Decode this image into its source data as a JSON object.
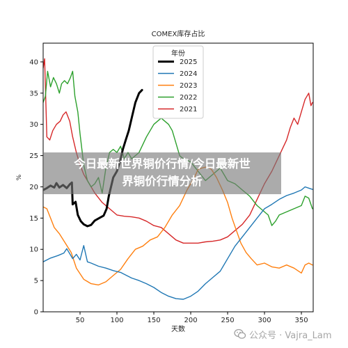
{
  "chart_data": {
    "type": "line",
    "title": "COMEX库存占比",
    "xlabel": "天数",
    "ylabel": "%",
    "xlim": [
      0,
      366
    ],
    "ylim": [
      0,
      43
    ],
    "xticks": [
      50,
      100,
      150,
      200,
      250,
      300,
      350
    ],
    "yticks": [
      0,
      5,
      10,
      15,
      20,
      25,
      30,
      35,
      40
    ],
    "grid": false,
    "legend_title": "年份",
    "legend_position": "top-center",
    "series": [
      {
        "name": "2025",
        "color": "#000000",
        "width": 3,
        "points": [
          [
            0,
            19.5
          ],
          [
            5,
            19.8
          ],
          [
            10,
            20.2
          ],
          [
            15,
            19.9
          ],
          [
            18,
            20.6
          ],
          [
            22,
            19.9
          ],
          [
            27,
            20.3
          ],
          [
            32,
            19.8
          ],
          [
            36,
            20.4
          ],
          [
            39,
            20.7
          ],
          [
            40,
            17.2
          ],
          [
            44,
            17.6
          ],
          [
            47,
            15.5
          ],
          [
            51,
            14.5
          ],
          [
            55,
            14.0
          ],
          [
            60,
            13.7
          ],
          [
            65,
            13.9
          ],
          [
            70,
            14.6
          ],
          [
            76,
            15.0
          ],
          [
            82,
            15.4
          ],
          [
            86,
            16.5
          ],
          [
            89,
            18.5
          ],
          [
            92,
            20.0
          ],
          [
            95,
            21.5
          ],
          [
            100,
            22.5
          ],
          [
            104,
            24.0
          ],
          [
            108,
            26.0
          ],
          [
            112,
            27.5
          ],
          [
            116,
            29.0
          ],
          [
            120,
            31.0
          ],
          [
            125,
            33.5
          ],
          [
            130,
            35.0
          ],
          [
            134,
            35.5
          ]
        ]
      },
      {
        "name": "2024",
        "color": "#1f77b4",
        "width": 1.4,
        "points": [
          [
            0,
            8.0
          ],
          [
            10,
            8.6
          ],
          [
            20,
            9.0
          ],
          [
            28,
            9.4
          ],
          [
            32,
            10.1
          ],
          [
            36,
            9.3
          ],
          [
            40,
            8.5
          ],
          [
            45,
            9.2
          ],
          [
            50,
            8.3
          ],
          [
            55,
            10.6
          ],
          [
            60,
            8.0
          ],
          [
            65,
            7.8
          ],
          [
            75,
            7.3
          ],
          [
            85,
            7.0
          ],
          [
            95,
            6.6
          ],
          [
            105,
            6.3
          ],
          [
            110,
            6.0
          ],
          [
            120,
            5.4
          ],
          [
            130,
            5.0
          ],
          [
            140,
            4.5
          ],
          [
            150,
            3.9
          ],
          [
            160,
            3.1
          ],
          [
            170,
            2.5
          ],
          [
            180,
            2.1
          ],
          [
            190,
            2.0
          ],
          [
            200,
            2.5
          ],
          [
            210,
            3.3
          ],
          [
            220,
            4.5
          ],
          [
            230,
            5.5
          ],
          [
            240,
            6.5
          ],
          [
            250,
            8.5
          ],
          [
            260,
            10.5
          ],
          [
            270,
            12.0
          ],
          [
            280,
            13.5
          ],
          [
            290,
            15.0
          ],
          [
            300,
            16.5
          ],
          [
            310,
            17.2
          ],
          [
            320,
            18.0
          ],
          [
            330,
            18.6
          ],
          [
            340,
            19.0
          ],
          [
            350,
            19.5
          ],
          [
            355,
            20.0
          ],
          [
            360,
            19.8
          ],
          [
            365,
            19.6
          ]
        ]
      },
      {
        "name": "2023",
        "color": "#ff7f0e",
        "width": 1.4,
        "points": [
          [
            0,
            16.8
          ],
          [
            5,
            16.5
          ],
          [
            10,
            15.0
          ],
          [
            15,
            13.5
          ],
          [
            22,
            12.5
          ],
          [
            30,
            11.0
          ],
          [
            38,
            9.5
          ],
          [
            45,
            7.0
          ],
          [
            55,
            5.2
          ],
          [
            65,
            4.5
          ],
          [
            75,
            4.3
          ],
          [
            85,
            4.8
          ],
          [
            95,
            5.8
          ],
          [
            105,
            6.8
          ],
          [
            115,
            8.5
          ],
          [
            125,
            10.0
          ],
          [
            135,
            10.5
          ],
          [
            145,
            11.5
          ],
          [
            155,
            12.0
          ],
          [
            165,
            13.5
          ],
          [
            175,
            15.5
          ],
          [
            185,
            17.0
          ],
          [
            195,
            19.5
          ],
          [
            205,
            21.5
          ],
          [
            210,
            22.8
          ],
          [
            215,
            23.0
          ],
          [
            222,
            23.2
          ],
          [
            228,
            22.8
          ],
          [
            235,
            21.5
          ],
          [
            243,
            19.5
          ],
          [
            250,
            17.5
          ],
          [
            256,
            15.0
          ],
          [
            262,
            13.0
          ],
          [
            268,
            11.0
          ],
          [
            275,
            9.5
          ],
          [
            282,
            8.5
          ],
          [
            290,
            7.5
          ],
          [
            300,
            7.8
          ],
          [
            310,
            7.2
          ],
          [
            320,
            7.0
          ],
          [
            330,
            7.5
          ],
          [
            340,
            7.0
          ],
          [
            350,
            6.2
          ],
          [
            355,
            7.5
          ],
          [
            360,
            7.8
          ],
          [
            365,
            7.5
          ]
        ]
      },
      {
        "name": "2022",
        "color": "#2ca02c",
        "width": 1.4,
        "points": [
          [
            0,
            33.5
          ],
          [
            3,
            34.5
          ],
          [
            6,
            38.5
          ],
          [
            10,
            36.0
          ],
          [
            14,
            37.5
          ],
          [
            18,
            36.5
          ],
          [
            22,
            35.0
          ],
          [
            25,
            36.5
          ],
          [
            29,
            37.0
          ],
          [
            33,
            36.5
          ],
          [
            37,
            37.5
          ],
          [
            40,
            38.5
          ],
          [
            43,
            34.5
          ],
          [
            47,
            32.0
          ],
          [
            50,
            28.5
          ],
          [
            55,
            23.5
          ],
          [
            60,
            21.0
          ],
          [
            65,
            20.0
          ],
          [
            70,
            20.5
          ],
          [
            75,
            21.5
          ],
          [
            80,
            19.0
          ],
          [
            85,
            23.0
          ],
          [
            90,
            25.5
          ],
          [
            95,
            26.0
          ],
          [
            100,
            25.5
          ],
          [
            105,
            26.5
          ],
          [
            110,
            24.5
          ],
          [
            115,
            25.5
          ],
          [
            120,
            24.5
          ],
          [
            130,
            25.5
          ],
          [
            140,
            28.0
          ],
          [
            150,
            30.0
          ],
          [
            160,
            31.0
          ],
          [
            170,
            30.0
          ],
          [
            175,
            29.0
          ],
          [
            180,
            27.0
          ],
          [
            185,
            25.0
          ],
          [
            190,
            24.5
          ],
          [
            200,
            24.0
          ],
          [
            210,
            22.5
          ],
          [
            220,
            21.0
          ],
          [
            230,
            22.0
          ],
          [
            240,
            23.0
          ],
          [
            250,
            21.0
          ],
          [
            260,
            20.5
          ],
          [
            270,
            19.5
          ],
          [
            280,
            18.5
          ],
          [
            290,
            17.0
          ],
          [
            300,
            16.0
          ],
          [
            305,
            15.5
          ],
          [
            310,
            13.8
          ],
          [
            315,
            14.5
          ],
          [
            320,
            15.5
          ],
          [
            330,
            16.0
          ],
          [
            340,
            16.5
          ],
          [
            350,
            17.0
          ],
          [
            355,
            18.5
          ],
          [
            360,
            18.2
          ],
          [
            365,
            16.5
          ]
        ]
      },
      {
        "name": "2021",
        "color": "#d62728",
        "width": 1.4,
        "points": [
          [
            0,
            39.0
          ],
          [
            2,
            40.5
          ],
          [
            5,
            28.0
          ],
          [
            9,
            27.5
          ],
          [
            13,
            29.0
          ],
          [
            18,
            30.0
          ],
          [
            23,
            30.5
          ],
          [
            27,
            31.5
          ],
          [
            31,
            32.0
          ],
          [
            36,
            30.5
          ],
          [
            40,
            28.0
          ],
          [
            45,
            25.5
          ],
          [
            50,
            23.5
          ],
          [
            55,
            22.0
          ],
          [
            60,
            21.0
          ],
          [
            70,
            19.0
          ],
          [
            80,
            17.5
          ],
          [
            90,
            16.5
          ],
          [
            100,
            15.5
          ],
          [
            110,
            15.3
          ],
          [
            120,
            15.2
          ],
          [
            130,
            15.0
          ],
          [
            140,
            14.5
          ],
          [
            150,
            13.8
          ],
          [
            160,
            13.5
          ],
          [
            170,
            12.5
          ],
          [
            180,
            11.5
          ],
          [
            190,
            11.0
          ],
          [
            200,
            11.0
          ],
          [
            210,
            11.0
          ],
          [
            220,
            11.2
          ],
          [
            230,
            11.3
          ],
          [
            240,
            11.5
          ],
          [
            250,
            12.0
          ],
          [
            260,
            13.0
          ],
          [
            270,
            14.0
          ],
          [
            280,
            15.5
          ],
          [
            290,
            18.0
          ],
          [
            300,
            20.5
          ],
          [
            310,
            22.5
          ],
          [
            320,
            25.0
          ],
          [
            330,
            27.5
          ],
          [
            335,
            29.5
          ],
          [
            340,
            31.0
          ],
          [
            345,
            30.0
          ],
          [
            350,
            32.0
          ],
          [
            355,
            34.0
          ],
          [
            360,
            35.0
          ],
          [
            363,
            33.0
          ],
          [
            365,
            33.5
          ]
        ]
      }
    ]
  },
  "overlay": {
    "headline_line1": "今日最新世界铜价行情/今日最新世",
    "headline_line2": "界铜价行情分析"
  },
  "watermark": {
    "text": "公众号 · Vajra_Lam",
    "icon": "wechat-icon"
  }
}
